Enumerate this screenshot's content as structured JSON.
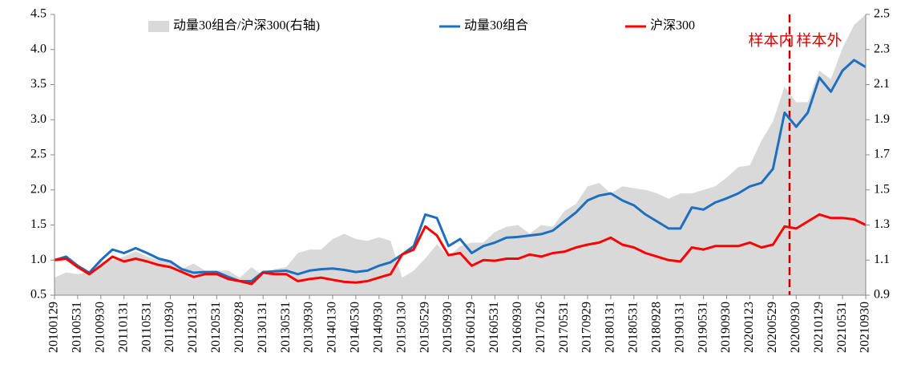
{
  "chart_data": {
    "type": "line",
    "categories": [
      "20100129",
      null,
      "20100531",
      null,
      "20100930",
      null,
      "20110131",
      null,
      "20110531",
      null,
      "20110930",
      null,
      "20120131",
      null,
      "20120531",
      null,
      "20120928",
      null,
      "20130131",
      null,
      "20130531",
      null,
      "20130930",
      null,
      "20140130",
      null,
      "20140530",
      null,
      "20140930",
      null,
      "20150130",
      null,
      "20150529",
      null,
      "20150930",
      null,
      "20160129",
      null,
      "20160531",
      null,
      "20160930",
      null,
      "20170126",
      null,
      "20170531",
      null,
      "20170929",
      null,
      "20180131",
      null,
      "20180531",
      null,
      "20180928",
      null,
      "20190131",
      null,
      "20190531",
      null,
      "20190930",
      null,
      "20200123",
      null,
      "20200529",
      null,
      "20200930",
      null,
      "20210129",
      null,
      "20210531",
      null,
      "20210930"
    ],
    "series": [
      {
        "name": "动量30组合/沪深300(右轴)",
        "color": "#d9d9d9",
        "axis": "y2",
        "kind": "area",
        "values": [
          1.0,
          1.03,
          1.02,
          1.03,
          1.09,
          1.1,
          1.12,
          1.15,
          1.12,
          1.1,
          1.09,
          1.05,
          1.08,
          1.04,
          1.04,
          1.04,
          1.0,
          1.06,
          1.01,
          1.05,
          1.06,
          1.14,
          1.16,
          1.16,
          1.22,
          1.25,
          1.22,
          1.21,
          1.23,
          1.21,
          1.0,
          1.04,
          1.11,
          1.19,
          1.12,
          1.18,
          1.2,
          1.2,
          1.26,
          1.29,
          1.3,
          1.25,
          1.3,
          1.29,
          1.38,
          1.42,
          1.52,
          1.54,
          1.48,
          1.52,
          1.51,
          1.5,
          1.48,
          1.45,
          1.48,
          1.48,
          1.5,
          1.52,
          1.57,
          1.63,
          1.64,
          1.78,
          1.89,
          2.09,
          2.0,
          2.0,
          2.18,
          2.13,
          2.31,
          2.44,
          2.5
        ]
      },
      {
        "name": "动量30组合",
        "color": "#1f6fc0",
        "kind": "line",
        "values": [
          1.0,
          1.05,
          0.92,
          0.82,
          1.0,
          1.15,
          1.1,
          1.17,
          1.1,
          1.02,
          0.98,
          0.87,
          0.82,
          0.83,
          0.83,
          0.76,
          0.7,
          0.7,
          0.83,
          0.84,
          0.85,
          0.8,
          0.85,
          0.87,
          0.88,
          0.86,
          0.83,
          0.85,
          0.92,
          0.97,
          1.08,
          1.2,
          1.65,
          1.6,
          1.2,
          1.3,
          1.1,
          1.2,
          1.25,
          1.32,
          1.33,
          1.35,
          1.37,
          1.42,
          1.55,
          1.68,
          1.85,
          1.92,
          1.95,
          1.85,
          1.78,
          1.65,
          1.55,
          1.45,
          1.45,
          1.75,
          1.72,
          1.82,
          1.88,
          1.95,
          2.05,
          2.1,
          2.3,
          3.1,
          2.9,
          3.1,
          3.6,
          3.4,
          3.7,
          3.85,
          3.75
        ]
      },
      {
        "name": "沪深300",
        "color": "#ff0000",
        "kind": "line",
        "values": [
          1.0,
          1.02,
          0.9,
          0.8,
          0.92,
          1.05,
          0.98,
          1.02,
          0.98,
          0.93,
          0.9,
          0.83,
          0.76,
          0.8,
          0.8,
          0.73,
          0.7,
          0.66,
          0.82,
          0.8,
          0.8,
          0.7,
          0.73,
          0.75,
          0.72,
          0.69,
          0.68,
          0.7,
          0.75,
          0.8,
          1.08,
          1.15,
          1.48,
          1.35,
          1.07,
          1.1,
          0.92,
          1.0,
          0.99,
          1.02,
          1.02,
          1.08,
          1.05,
          1.1,
          1.12,
          1.18,
          1.22,
          1.25,
          1.32,
          1.22,
          1.18,
          1.1,
          1.05,
          1.0,
          0.98,
          1.18,
          1.15,
          1.2,
          1.2,
          1.2,
          1.25,
          1.18,
          1.22,
          1.48,
          1.45,
          1.55,
          1.65,
          1.6,
          1.6,
          1.58,
          1.5
        ]
      }
    ],
    "ylim": [
      0.5,
      4.5
    ],
    "yticks": [
      {
        "value": 0.5,
        "label": "0.5"
      },
      {
        "value": 1,
        "label": "1.0"
      },
      {
        "value": 1.5,
        "label": "1.5"
      },
      {
        "value": 2,
        "label": "2.0"
      },
      {
        "value": 2.5,
        "label": "2.5"
      },
      {
        "value": 3,
        "label": "3.0"
      },
      {
        "value": 3.5,
        "label": "3.5"
      },
      {
        "value": 4,
        "label": "4.0"
      },
      {
        "value": 4.5,
        "label": "4.5"
      }
    ],
    "y2lim": [
      0.9,
      2.5
    ],
    "y2ticks": [
      0.9,
      1.1,
      1.3,
      1.5,
      1.7,
      1.9,
      2.1,
      2.3,
      2.5
    ],
    "annotations": [
      "样本内",
      "样本外"
    ]
  }
}
